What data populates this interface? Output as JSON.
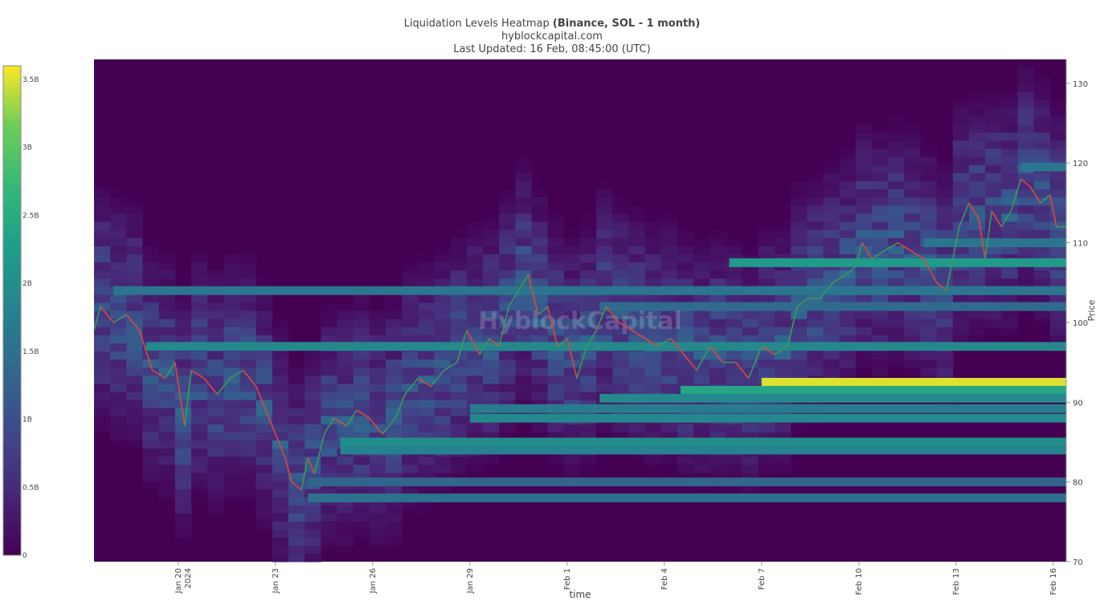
{
  "header": {
    "title_prefix": "Liquidation Levels Heatmap ",
    "title_bold": "(Binance, SOL - 1 month)",
    "source": "hyblockcapital.com",
    "updated": "Last Updated: 16 Feb, 08:45:00 (UTC)"
  },
  "watermark": "HyblockCapital",
  "colors": {
    "background": "#ffffff",
    "heatmap_low": "#440154",
    "heatmap_high": "#fde725",
    "price_up": "#3a9a5c",
    "price_down": "#e0473a"
  },
  "chart_data": {
    "type": "heatmap",
    "title": "Liquidation Levels Heatmap (Binance, SOL - 1 month)",
    "xlabel": "time",
    "ylabel": "Price",
    "ylim": [
      70,
      133
    ],
    "y_ticks": [
      70,
      80,
      90,
      100,
      110,
      120,
      130
    ],
    "x_ticks": [
      {
        "label": "Jan 20",
        "sub": "2024",
        "day": 3
      },
      {
        "label": "Jan 23",
        "sub": "",
        "day": 6
      },
      {
        "label": "Jan 26",
        "sub": "",
        "day": 9
      },
      {
        "label": "Jan 29",
        "sub": "",
        "day": 12
      },
      {
        "label": "Feb 1",
        "sub": "",
        "day": 15
      },
      {
        "label": "Feb 4",
        "sub": "",
        "day": 18
      },
      {
        "label": "Feb 7",
        "sub": "",
        "day": 21
      },
      {
        "label": "Feb 10",
        "sub": "",
        "day": 24
      },
      {
        "label": "Feb 13",
        "sub": "",
        "day": 27
      },
      {
        "label": "Feb 16",
        "sub": "",
        "day": 30
      }
    ],
    "x_range_days": [
      0.4,
      30.4
    ],
    "colorbar": {
      "min": 0,
      "max": 3.6,
      "ticks": [
        {
          "value": 0,
          "label": "0"
        },
        {
          "value": 0.5,
          "label": "0.5B"
        },
        {
          "value": 1,
          "label": "1B"
        },
        {
          "value": 1.5,
          "label": "1.5B"
        },
        {
          "value": 2,
          "label": "2B"
        },
        {
          "value": 2.5,
          "label": "2.5B"
        },
        {
          "value": 3,
          "label": "3B"
        },
        {
          "value": 3.5,
          "label": "3.5B"
        }
      ]
    },
    "price_series": [
      {
        "day": 0.4,
        "price": 99
      },
      {
        "day": 0.6,
        "price": 102
      },
      {
        "day": 1.0,
        "price": 100
      },
      {
        "day": 1.4,
        "price": 101
      },
      {
        "day": 1.8,
        "price": 99
      },
      {
        "day": 2.2,
        "price": 94
      },
      {
        "day": 2.6,
        "price": 93
      },
      {
        "day": 2.9,
        "price": 95
      },
      {
        "day": 3.2,
        "price": 87
      },
      {
        "day": 3.4,
        "price": 94
      },
      {
        "day": 3.8,
        "price": 93
      },
      {
        "day": 4.2,
        "price": 91
      },
      {
        "day": 4.6,
        "price": 93
      },
      {
        "day": 5.0,
        "price": 94
      },
      {
        "day": 5.4,
        "price": 92
      },
      {
        "day": 5.8,
        "price": 88
      },
      {
        "day": 6.1,
        "price": 85
      },
      {
        "day": 6.3,
        "price": 83
      },
      {
        "day": 6.5,
        "price": 80
      },
      {
        "day": 6.8,
        "price": 79
      },
      {
        "day": 7.0,
        "price": 83
      },
      {
        "day": 7.2,
        "price": 81
      },
      {
        "day": 7.5,
        "price": 86
      },
      {
        "day": 7.8,
        "price": 88
      },
      {
        "day": 8.2,
        "price": 87
      },
      {
        "day": 8.5,
        "price": 89
      },
      {
        "day": 8.9,
        "price": 88
      },
      {
        "day": 9.3,
        "price": 86
      },
      {
        "day": 9.7,
        "price": 88
      },
      {
        "day": 10.0,
        "price": 91
      },
      {
        "day": 10.4,
        "price": 93
      },
      {
        "day": 10.8,
        "price": 92
      },
      {
        "day": 11.2,
        "price": 94
      },
      {
        "day": 11.6,
        "price": 95
      },
      {
        "day": 11.9,
        "price": 99
      },
      {
        "day": 12.3,
        "price": 96
      },
      {
        "day": 12.6,
        "price": 98
      },
      {
        "day": 12.9,
        "price": 97
      },
      {
        "day": 13.2,
        "price": 102
      },
      {
        "day": 13.5,
        "price": 104
      },
      {
        "day": 13.8,
        "price": 106
      },
      {
        "day": 14.1,
        "price": 101
      },
      {
        "day": 14.4,
        "price": 102
      },
      {
        "day": 14.7,
        "price": 97
      },
      {
        "day": 15.0,
        "price": 98
      },
      {
        "day": 15.3,
        "price": 93
      },
      {
        "day": 15.6,
        "price": 97
      },
      {
        "day": 15.9,
        "price": 99
      },
      {
        "day": 16.2,
        "price": 102
      },
      {
        "day": 16.6,
        "price": 100
      },
      {
        "day": 17.0,
        "price": 99
      },
      {
        "day": 17.4,
        "price": 98
      },
      {
        "day": 17.8,
        "price": 97
      },
      {
        "day": 18.2,
        "price": 98
      },
      {
        "day": 18.6,
        "price": 96
      },
      {
        "day": 19.0,
        "price": 94
      },
      {
        "day": 19.4,
        "price": 97
      },
      {
        "day": 19.8,
        "price": 95
      },
      {
        "day": 20.2,
        "price": 95
      },
      {
        "day": 20.6,
        "price": 93
      },
      {
        "day": 21.0,
        "price": 97
      },
      {
        "day": 21.4,
        "price": 96
      },
      {
        "day": 21.8,
        "price": 97
      },
      {
        "day": 22.1,
        "price": 102
      },
      {
        "day": 22.4,
        "price": 103
      },
      {
        "day": 22.8,
        "price": 103
      },
      {
        "day": 23.2,
        "price": 105
      },
      {
        "day": 23.6,
        "price": 106
      },
      {
        "day": 23.9,
        "price": 107
      },
      {
        "day": 24.1,
        "price": 110
      },
      {
        "day": 24.4,
        "price": 108
      },
      {
        "day": 24.8,
        "price": 109
      },
      {
        "day": 25.2,
        "price": 110
      },
      {
        "day": 25.6,
        "price": 109
      },
      {
        "day": 26.0,
        "price": 108
      },
      {
        "day": 26.4,
        "price": 105
      },
      {
        "day": 26.7,
        "price": 104
      },
      {
        "day": 26.9,
        "price": 108
      },
      {
        "day": 27.1,
        "price": 112
      },
      {
        "day": 27.4,
        "price": 115
      },
      {
        "day": 27.7,
        "price": 113
      },
      {
        "day": 27.9,
        "price": 108
      },
      {
        "day": 28.1,
        "price": 114
      },
      {
        "day": 28.4,
        "price": 112
      },
      {
        "day": 28.7,
        "price": 114
      },
      {
        "day": 29.0,
        "price": 118
      },
      {
        "day": 29.3,
        "price": 117
      },
      {
        "day": 29.6,
        "price": 115
      },
      {
        "day": 29.9,
        "price": 116
      },
      {
        "day": 30.1,
        "price": 112
      },
      {
        "day": 30.4,
        "price": 112
      }
    ],
    "liquidation_bands": [
      {
        "price": 92.5,
        "start_day": 21.0,
        "value": 3.5
      },
      {
        "price": 91.5,
        "start_day": 18.5,
        "value": 2.4
      },
      {
        "price": 90.5,
        "start_day": 16.0,
        "value": 1.9
      },
      {
        "price": 89.2,
        "start_day": 12.0,
        "value": 1.7
      },
      {
        "price": 88.0,
        "start_day": 12.0,
        "value": 1.9
      },
      {
        "price": 85.0,
        "start_day": 8.0,
        "value": 2.0
      },
      {
        "price": 84.0,
        "start_day": 8.0,
        "value": 1.8
      },
      {
        "price": 80.0,
        "start_day": 7.0,
        "value": 1.3
      },
      {
        "price": 78.0,
        "start_day": 7.0,
        "value": 1.5
      },
      {
        "price": 102.0,
        "start_day": 16.0,
        "value": 1.4
      },
      {
        "price": 104.0,
        "start_day": 18.0,
        "value": 1.9
      },
      {
        "price": 107.5,
        "start_day": 20.0,
        "value": 2.2
      },
      {
        "price": 110.0,
        "start_day": 26.0,
        "value": 1.6
      },
      {
        "price": 119.5,
        "start_day": 29.0,
        "value": 1.6
      },
      {
        "price": 97.0,
        "start_day": 2.0,
        "value": 1.9
      },
      {
        "price": 104.0,
        "start_day": 1.0,
        "value": 1.6
      }
    ]
  }
}
